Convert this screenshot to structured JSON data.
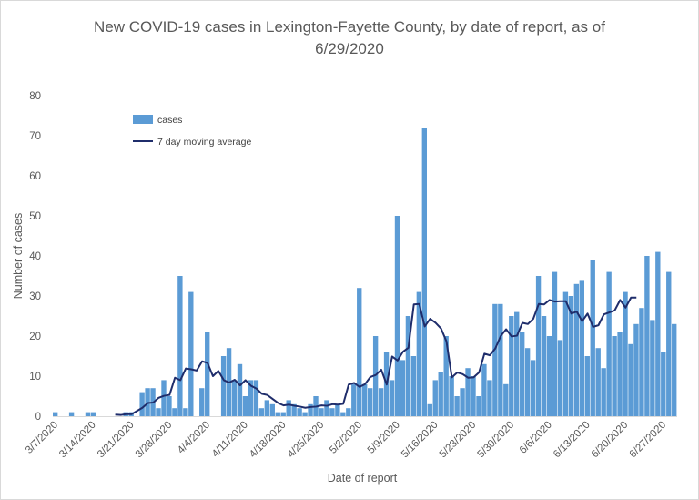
{
  "chart_data": {
    "type": "bar",
    "title_line1": "New COVID-19 cases in Lexington-Fayette County, by date of report, as of",
    "title_line2": "6/29/2020",
    "xlabel": "Date of report",
    "ylabel": "Number of cases",
    "ylim": [
      0,
      80
    ],
    "yticks": [
      "0",
      "10",
      "20",
      "30",
      "40",
      "50",
      "60",
      "70",
      "80"
    ],
    "grid": false,
    "legend_position": "top-left",
    "colors": {
      "bar": "#5b9bd5",
      "line": "#1f2d6b"
    },
    "xtick_labels": [
      {
        "index": 0,
        "label": "3/7/2020"
      },
      {
        "index": 7,
        "label": "3/14/2020"
      },
      {
        "index": 14,
        "label": "3/21/2020"
      },
      {
        "index": 21,
        "label": "3/28/2020"
      },
      {
        "index": 28,
        "label": "4/4/2020"
      },
      {
        "index": 35,
        "label": "4/11/2020"
      },
      {
        "index": 42,
        "label": "4/18/2020"
      },
      {
        "index": 49,
        "label": "4/25/2020"
      },
      {
        "index": 56,
        "label": "5/2/2020"
      },
      {
        "index": 63,
        "label": "5/9/2020"
      },
      {
        "index": 70,
        "label": "5/16/2020"
      },
      {
        "index": 77,
        "label": "5/23/2020"
      },
      {
        "index": 84,
        "label": "5/30/2020"
      },
      {
        "index": 91,
        "label": "6/6/2020"
      },
      {
        "index": 98,
        "label": "6/13/2020"
      },
      {
        "index": 105,
        "label": "6/20/2020"
      },
      {
        "index": 112,
        "label": "6/27/2020"
      }
    ],
    "start_date": "3/7/2020",
    "series": [
      {
        "name": "cases",
        "kind": "bar",
        "values": [
          1,
          0,
          0,
          1,
          0,
          0,
          1,
          1,
          0,
          0,
          0,
          0,
          0,
          1,
          1,
          0,
          6,
          7,
          7,
          2,
          9,
          5,
          2,
          35,
          2,
          31,
          0,
          7,
          21,
          0,
          0,
          15,
          17,
          9,
          13,
          5,
          9,
          9,
          2,
          4,
          3,
          1,
          1,
          4,
          3,
          2,
          1,
          3,
          5,
          2,
          4,
          2,
          3,
          1,
          2,
          8,
          32,
          8,
          7,
          20,
          7,
          16,
          9,
          50,
          14,
          25,
          15,
          31,
          72,
          3,
          9,
          11,
          20,
          10,
          5,
          7,
          12,
          10,
          5,
          13,
          9,
          28,
          28,
          8,
          25,
          26,
          21,
          17,
          14,
          35,
          25,
          20,
          36,
          19,
          31,
          30,
          33,
          34,
          15,
          39,
          17,
          12,
          36,
          20,
          21,
          31,
          18,
          23,
          27,
          40,
          24,
          41,
          16,
          36,
          23
        ]
      },
      {
        "name": "7 day moving average",
        "kind": "line",
        "start_index": 11,
        "values": [
          0.4,
          0.3,
          0.5,
          0.5,
          1.3,
          2.1,
          3.3,
          3.4,
          4.6,
          5.1,
          5.3,
          9.6,
          9.0,
          11.9,
          11.7,
          11.4,
          13.7,
          13.3,
          10.0,
          11.3,
          9.0,
          8.4,
          9.1,
          7.7,
          9.0,
          7.6,
          6.9,
          5.6,
          5.3,
          4.3,
          3.3,
          2.7,
          2.9,
          2.6,
          2.4,
          2.1,
          2.3,
          2.4,
          2.7,
          2.6,
          3.0,
          2.9,
          3.1,
          7.9,
          8.3,
          7.3,
          8.0,
          9.8,
          10.3,
          11.6,
          7.9,
          14.9,
          13.9,
          16.1,
          17.1,
          27.9,
          28.0,
          22.4,
          24.3,
          23.3,
          21.9,
          18.7,
          9.7,
          10.9,
          10.5,
          9.6,
          9.7,
          10.9,
          15.6,
          15.2,
          16.9,
          20.0,
          21.7,
          19.9,
          20.1,
          23.3,
          23.0,
          24.3,
          28.0,
          27.9,
          29.0,
          28.6,
          28.7,
          28.7,
          25.6,
          26.1,
          23.7,
          25.6,
          22.3,
          22.7,
          25.4,
          25.9,
          26.4,
          29.0,
          27.1,
          29.6,
          29.6
        ]
      }
    ]
  }
}
